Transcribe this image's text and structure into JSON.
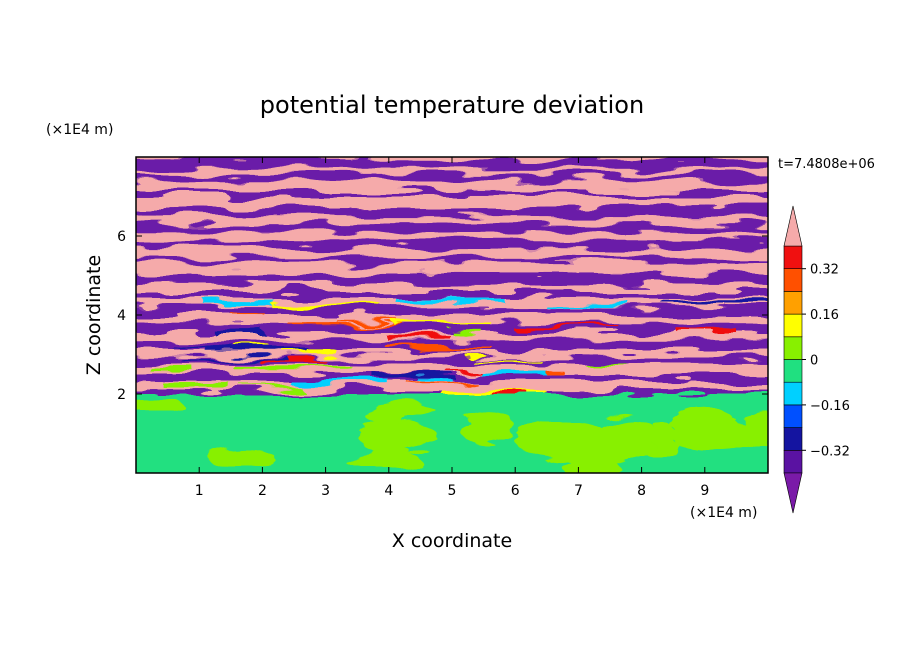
{
  "chart_data": {
    "type": "heatmap",
    "title": "potential temperature deviation",
    "xlabel": "X coordinate",
    "ylabel": "Z coordinate",
    "x_unit": "(×1E4 m)",
    "y_unit": "(×1E4 m)",
    "time_label": "t=7.4808e+06",
    "xlim": [
      0,
      10
    ],
    "ylim": [
      0,
      8
    ],
    "x_ticks": [
      1,
      2,
      3,
      4,
      5,
      6,
      7,
      8,
      9
    ],
    "y_ticks": [
      2,
      4,
      6
    ],
    "colorbar": {
      "levels": [
        -0.4,
        -0.32,
        -0.24,
        -0.16,
        -0.08,
        0,
        0.08,
        0.16,
        0.24,
        0.32,
        0.4
      ],
      "labels": [
        "0.32",
        "0.16",
        "0",
        "−0.16",
        "−0.32"
      ],
      "label_values": [
        0.32,
        0.16,
        0,
        -0.16,
        -0.32
      ],
      "colors": [
        "#7a1aa8",
        "#5a12a2",
        "#1414a0",
        "#0050ff",
        "#00d0ff",
        "#20e080",
        "#88f000",
        "#ffff00",
        "#ffa000",
        "#ff5000",
        "#f01010",
        "#f5aaaa"
      ],
      "extend": "both"
    },
    "regions": {
      "upper_layer_range_z": [
        2,
        8
      ],
      "upper_layer_colors": [
        "#6a1aa8",
        "#f5aaaa"
      ],
      "lower_layer_range_z": [
        0,
        2
      ],
      "lower_layer_colors": [
        "#20e080",
        "#88f000"
      ]
    }
  }
}
